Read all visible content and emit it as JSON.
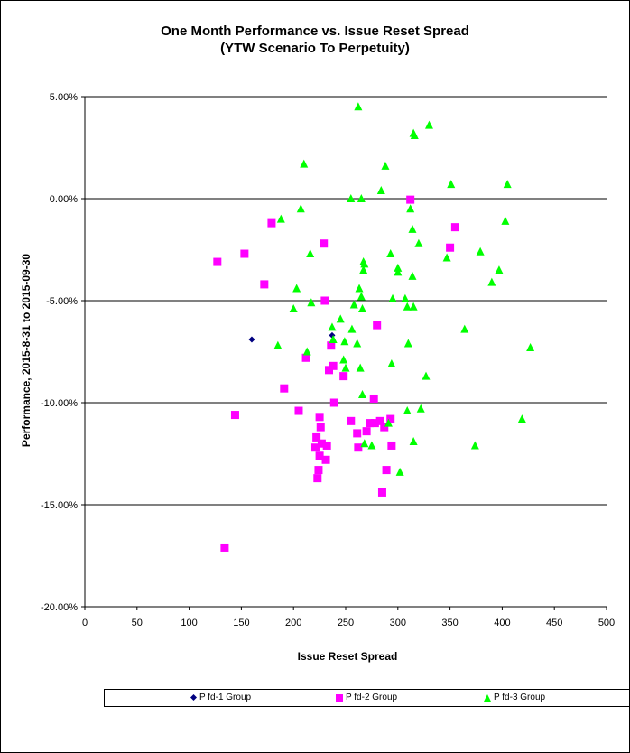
{
  "chart_data": {
    "type": "scatter",
    "title": "One Month Performance vs. Issue Reset Spread",
    "subtitle": "(YTW Scenario To Perpetuity)",
    "xlabel": "Issue  Reset  Spread",
    "ylabel": "Performance, 2015-8-31  to 2015-09-30",
    "xlim": [
      0,
      500
    ],
    "ylim": [
      -20,
      5
    ],
    "x_ticks": [
      0,
      50,
      100,
      150,
      200,
      250,
      300,
      350,
      400,
      450,
      500
    ],
    "x_tick_labels": [
      "0",
      "50",
      "100",
      "150",
      "200",
      "250",
      "300",
      "350",
      "400",
      "450",
      "500"
    ],
    "y_ticks": [
      5,
      0,
      -5,
      -10,
      -15,
      -20
    ],
    "y_tick_labels": [
      "5.00%",
      "0.00%",
      "-5.00%",
      "-10.00%",
      "-15.00%",
      "-20.00%"
    ],
    "gridlines": "horizontal",
    "legend_position": "bottom",
    "series": [
      {
        "name": "P fd-1 Group",
        "marker": "diamond",
        "color": "#000080",
        "points": [
          [
            160,
            -6.9
          ],
          [
            237,
            -6.7
          ]
        ]
      },
      {
        "name": "P fd-2 Group",
        "marker": "square",
        "color": "#ff00ff",
        "points": [
          [
            127,
            -3.1
          ],
          [
            134,
            -17.1
          ],
          [
            144,
            -10.6
          ],
          [
            153,
            -2.7
          ],
          [
            172,
            -4.2
          ],
          [
            179,
            -1.2
          ],
          [
            191,
            -9.3
          ],
          [
            205,
            -10.4
          ],
          [
            212,
            -7.8
          ],
          [
            221,
            -12.2
          ],
          [
            222,
            -11.7
          ],
          [
            223,
            -13.7
          ],
          [
            224,
            -13.3
          ],
          [
            225,
            -10.7
          ],
          [
            225,
            -12.6
          ],
          [
            226,
            -11.2
          ],
          [
            227,
            -12.0
          ],
          [
            229,
            -2.2
          ],
          [
            230,
            -5.0
          ],
          [
            231,
            -12.8
          ],
          [
            232,
            -12.1
          ],
          [
            234,
            -8.4
          ],
          [
            236,
            -7.2
          ],
          [
            238,
            -8.2
          ],
          [
            239,
            -10.0
          ],
          [
            248,
            -8.7
          ],
          [
            255,
            -10.9
          ],
          [
            261,
            -11.5
          ],
          [
            262,
            -12.2
          ],
          [
            270,
            -11.4
          ],
          [
            273,
            -11.0
          ],
          [
            277,
            -9.8
          ],
          [
            278,
            -11.0
          ],
          [
            280,
            -6.2
          ],
          [
            283,
            -10.9
          ],
          [
            285,
            -14.4
          ],
          [
            287,
            -11.2
          ],
          [
            289,
            -13.3
          ],
          [
            293,
            -10.8
          ],
          [
            294,
            -12.1
          ],
          [
            312,
            -0.05
          ],
          [
            350,
            -2.4
          ],
          [
            355,
            -1.4
          ]
        ]
      },
      {
        "name": "P fd-3 Group",
        "marker": "triangle",
        "color": "#00ff00",
        "points": [
          [
            185,
            -7.2
          ],
          [
            188,
            -1.0
          ],
          [
            200,
            -5.4
          ],
          [
            203,
            -4.4
          ],
          [
            207,
            -0.5
          ],
          [
            210,
            1.7
          ],
          [
            213,
            -7.5
          ],
          [
            216,
            -2.7
          ],
          [
            217,
            -5.1
          ],
          [
            237,
            -6.3
          ],
          [
            238,
            -6.9
          ],
          [
            245,
            -5.9
          ],
          [
            248,
            -7.9
          ],
          [
            249,
            -7.0
          ],
          [
            250,
            -8.3
          ],
          [
            255,
            0.0
          ],
          [
            256,
            -6.4
          ],
          [
            258,
            -5.2
          ],
          [
            261,
            -7.1
          ],
          [
            262,
            4.5
          ],
          [
            263,
            -4.4
          ],
          [
            264,
            -8.3
          ],
          [
            265,
            -4.8
          ],
          [
            265,
            0.0
          ],
          [
            266,
            -5.4
          ],
          [
            266,
            -9.6
          ],
          [
            267,
            -3.1
          ],
          [
            267,
            -3.5
          ],
          [
            268,
            -3.2
          ],
          [
            268,
            -12.0
          ],
          [
            275,
            -12.1
          ],
          [
            284,
            0.4
          ],
          [
            288,
            1.6
          ],
          [
            291,
            -11.0
          ],
          [
            293,
            -2.7
          ],
          [
            294,
            -8.1
          ],
          [
            295,
            -4.9
          ],
          [
            300,
            -3.4
          ],
          [
            300,
            -3.6
          ],
          [
            302,
            -13.4
          ],
          [
            307,
            -4.9
          ],
          [
            309,
            -5.3
          ],
          [
            309,
            -10.4
          ],
          [
            310,
            -7.1
          ],
          [
            312,
            -0.5
          ],
          [
            314,
            -1.5
          ],
          [
            314,
            -3.8
          ],
          [
            315,
            3.2
          ],
          [
            315,
            -5.3
          ],
          [
            315,
            -11.9
          ],
          [
            316,
            3.1
          ],
          [
            320,
            -2.2
          ],
          [
            322,
            -10.3
          ],
          [
            327,
            -8.7
          ],
          [
            330,
            3.6
          ],
          [
            347,
            -2.9
          ],
          [
            351,
            0.7
          ],
          [
            364,
            -6.4
          ],
          [
            374,
            -12.1
          ],
          [
            379,
            -2.6
          ],
          [
            390,
            -4.1
          ],
          [
            397,
            -3.5
          ],
          [
            403,
            -1.1
          ],
          [
            405,
            0.7
          ],
          [
            419,
            -10.8
          ],
          [
            427,
            -7.3
          ]
        ]
      }
    ]
  }
}
